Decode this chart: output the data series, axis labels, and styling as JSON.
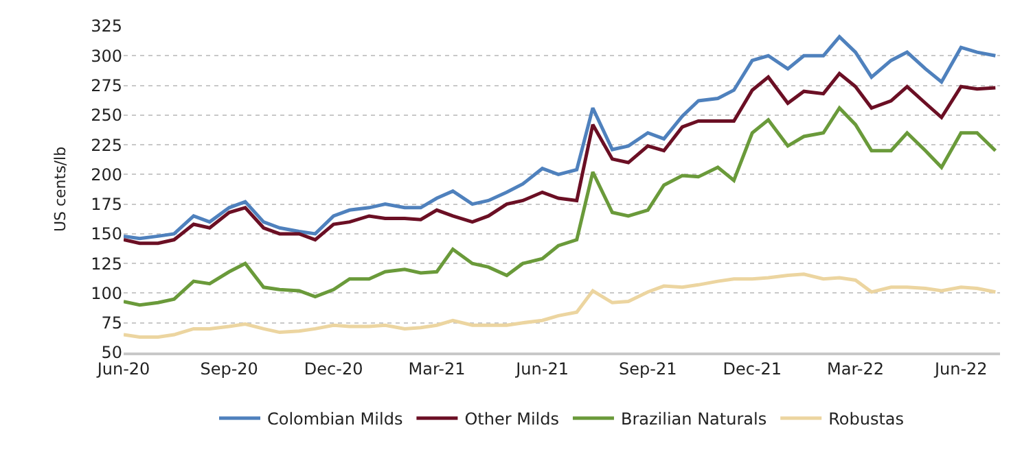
{
  "chart_data": {
    "type": "line",
    "ylabel": "US cents/lb",
    "x": [
      "2020-06-01",
      "2020-06-15",
      "2020-07-01",
      "2020-07-15",
      "2020-08-01",
      "2020-08-15",
      "2020-09-01",
      "2020-09-15",
      "2020-10-01",
      "2020-10-15",
      "2020-11-01",
      "2020-11-15",
      "2020-12-01",
      "2020-12-15",
      "2021-01-01",
      "2021-01-15",
      "2021-02-01",
      "2021-02-15",
      "2021-03-01",
      "2021-03-15",
      "2021-04-01",
      "2021-04-15",
      "2021-05-01",
      "2021-05-15",
      "2021-06-01",
      "2021-06-15",
      "2021-07-01",
      "2021-07-15",
      "2021-08-01",
      "2021-08-15",
      "2021-09-01",
      "2021-09-15",
      "2021-10-01",
      "2021-10-15",
      "2021-11-01",
      "2021-11-15",
      "2021-12-01",
      "2021-12-15",
      "2022-01-01",
      "2022-01-15",
      "2022-02-01",
      "2022-02-15",
      "2022-03-01",
      "2022-03-15",
      "2022-04-01",
      "2022-04-15",
      "2022-05-01",
      "2022-05-15",
      "2022-06-01",
      "2022-06-15",
      "2022-07-01"
    ],
    "series": [
      {
        "name": "Colombian Milds",
        "color": "#4f81bd",
        "values": [
          148,
          146,
          148,
          150,
          165,
          160,
          172,
          177,
          160,
          155,
          152,
          150,
          165,
          170,
          172,
          175,
          172,
          172,
          180,
          186,
          175,
          178,
          185,
          192,
          205,
          200,
          204,
          256,
          221,
          224,
          235,
          230,
          249,
          262,
          264,
          271,
          296,
          300,
          289,
          300,
          300,
          316,
          303,
          282,
          296,
          303,
          289,
          278,
          307,
          303,
          300
        ]
      },
      {
        "name": "Other Milds",
        "color": "#6b0f24",
        "values": [
          145,
          142,
          142,
          145,
          158,
          155,
          168,
          172,
          155,
          150,
          150,
          145,
          158,
          160,
          165,
          163,
          163,
          162,
          170,
          165,
          160,
          165,
          175,
          178,
          185,
          180,
          178,
          242,
          213,
          210,
          224,
          220,
          240,
          245,
          245,
          245,
          271,
          282,
          260,
          270,
          268,
          285,
          274,
          256,
          262,
          274,
          260,
          248,
          274,
          272,
          273
        ]
      },
      {
        "name": "Brazilian Naturals",
        "color": "#6a9a3a",
        "values": [
          93,
          90,
          92,
          95,
          110,
          108,
          118,
          125,
          105,
          103,
          102,
          97,
          103,
          112,
          112,
          118,
          120,
          117,
          118,
          137,
          125,
          122,
          115,
          125,
          129,
          140,
          145,
          202,
          168,
          165,
          170,
          191,
          199,
          198,
          206,
          195,
          235,
          246,
          224,
          232,
          235,
          256,
          242,
          220,
          220,
          235,
          220,
          206,
          235,
          235,
          220
        ]
      },
      {
        "name": "Robustas",
        "color": "#ecd5a0",
        "values": [
          65,
          63,
          63,
          65,
          70,
          70,
          72,
          74,
          70,
          67,
          68,
          70,
          73,
          72,
          72,
          73,
          70,
          71,
          73,
          77,
          73,
          73,
          73,
          75,
          77,
          81,
          84,
          102,
          92,
          93,
          101,
          106,
          105,
          107,
          110,
          112,
          112,
          113,
          115,
          116,
          112,
          113,
          111,
          101,
          105,
          105,
          104,
          102,
          105,
          104,
          101
        ]
      }
    ],
    "xlim": [
      "2020-06-01",
      "2022-07-05"
    ],
    "xticks": [
      {
        "value": "2020-06-01",
        "label": "Jun-20"
      },
      {
        "value": "2020-09-01",
        "label": "Sep-20"
      },
      {
        "value": "2020-12-01",
        "label": "Dec-20"
      },
      {
        "value": "2021-03-01",
        "label": "Mar-21"
      },
      {
        "value": "2021-06-01",
        "label": "Jun-21"
      },
      {
        "value": "2021-09-01",
        "label": "Sep-21"
      },
      {
        "value": "2021-12-01",
        "label": "Dec-21"
      },
      {
        "value": "2022-03-01",
        "label": "Mar-22"
      },
      {
        "value": "2022-06-01",
        "label": "Jun-22"
      }
    ],
    "ylim": [
      50,
      325
    ],
    "yticks": [
      50,
      75,
      100,
      125,
      150,
      175,
      200,
      225,
      250,
      275,
      300,
      325
    ],
    "grid": "y",
    "legend": "bottom",
    "marker": "none",
    "line_style": "solid"
  }
}
